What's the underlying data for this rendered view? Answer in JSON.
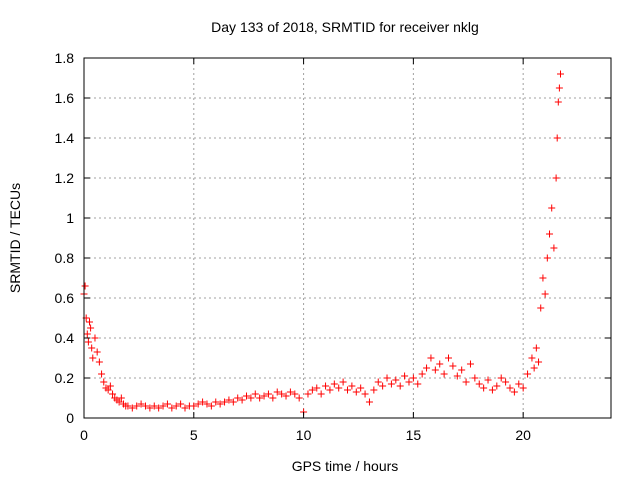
{
  "chart_data": {
    "type": "scatter",
    "title": "Day 133 of 2018, SRMTID for receiver nklg",
    "xlabel": "GPS time / hours",
    "ylabel": "SRMTID / TECUs",
    "xlim": [
      0,
      24
    ],
    "ylim": [
      0,
      1.8
    ],
    "xticks": [
      0,
      5,
      10,
      15,
      20
    ],
    "xtick_labels": [
      "0",
      "5",
      "10",
      "15",
      "20"
    ],
    "yticks": [
      0,
      0.2,
      0.4,
      0.6,
      0.8,
      1,
      1.2,
      1.4,
      1.6,
      1.8
    ],
    "ytick_labels": [
      "0",
      "0.2",
      "0.4",
      "0.6",
      "0.8",
      "1",
      "1.2",
      "1.4",
      "1.6",
      "1.8"
    ],
    "grid": true,
    "marker": "plus",
    "color": "#ff0000",
    "series": [
      {
        "name": "SRMTID",
        "x": [
          0.0,
          0.05,
          0.1,
          0.15,
          0.2,
          0.25,
          0.3,
          0.35,
          0.4,
          0.5,
          0.6,
          0.7,
          0.8,
          0.9,
          1.0,
          1.1,
          1.2,
          1.3,
          1.4,
          1.5,
          1.6,
          1.7,
          1.8,
          1.9,
          2.0,
          2.2,
          2.4,
          2.6,
          2.8,
          3.0,
          3.2,
          3.4,
          3.6,
          3.8,
          4.0,
          4.2,
          4.4,
          4.6,
          4.8,
          5.0,
          5.2,
          5.4,
          5.6,
          5.8,
          6.0,
          6.2,
          6.4,
          6.6,
          6.8,
          7.0,
          7.2,
          7.4,
          7.6,
          7.8,
          8.0,
          8.2,
          8.4,
          8.6,
          8.8,
          9.0,
          9.2,
          9.4,
          9.6,
          9.8,
          10.0,
          10.2,
          10.4,
          10.6,
          10.8,
          11.0,
          11.2,
          11.4,
          11.6,
          11.8,
          12.0,
          12.2,
          12.4,
          12.6,
          12.8,
          13.0,
          13.2,
          13.4,
          13.6,
          13.8,
          14.0,
          14.2,
          14.4,
          14.6,
          14.8,
          15.0,
          15.2,
          15.4,
          15.6,
          15.8,
          16.0,
          16.2,
          16.4,
          16.6,
          16.8,
          17.0,
          17.2,
          17.4,
          17.6,
          17.8,
          18.0,
          18.2,
          18.4,
          18.6,
          18.8,
          19.0,
          19.2,
          19.4,
          19.6,
          19.8,
          20.0,
          20.2,
          20.4,
          20.5,
          20.6,
          20.7,
          20.8,
          20.9,
          21.0,
          21.1,
          21.2,
          21.3,
          21.4,
          21.5,
          21.55,
          21.6,
          21.65,
          21.7
        ],
        "y": [
          0.62,
          0.66,
          0.5,
          0.42,
          0.38,
          0.48,
          0.45,
          0.35,
          0.3,
          0.4,
          0.33,
          0.28,
          0.22,
          0.18,
          0.15,
          0.14,
          0.16,
          0.12,
          0.1,
          0.09,
          0.08,
          0.1,
          0.07,
          0.06,
          0.06,
          0.05,
          0.06,
          0.07,
          0.06,
          0.05,
          0.06,
          0.05,
          0.06,
          0.07,
          0.05,
          0.06,
          0.07,
          0.05,
          0.06,
          0.06,
          0.07,
          0.08,
          0.07,
          0.06,
          0.08,
          0.07,
          0.08,
          0.09,
          0.08,
          0.1,
          0.09,
          0.11,
          0.1,
          0.12,
          0.1,
          0.11,
          0.12,
          0.1,
          0.13,
          0.12,
          0.11,
          0.13,
          0.12,
          0.1,
          0.03,
          0.12,
          0.14,
          0.15,
          0.12,
          0.16,
          0.14,
          0.17,
          0.15,
          0.18,
          0.14,
          0.16,
          0.13,
          0.15,
          0.12,
          0.08,
          0.14,
          0.18,
          0.16,
          0.2,
          0.17,
          0.19,
          0.16,
          0.21,
          0.18,
          0.2,
          0.17,
          0.22,
          0.25,
          0.3,
          0.24,
          0.27,
          0.22,
          0.3,
          0.26,
          0.21,
          0.24,
          0.18,
          0.27,
          0.2,
          0.17,
          0.15,
          0.19,
          0.14,
          0.16,
          0.2,
          0.18,
          0.15,
          0.13,
          0.17,
          0.15,
          0.22,
          0.3,
          0.25,
          0.35,
          0.28,
          0.55,
          0.7,
          0.62,
          0.8,
          0.92,
          1.05,
          0.85,
          1.2,
          1.4,
          1.58,
          1.65,
          1.72
        ]
      }
    ]
  }
}
